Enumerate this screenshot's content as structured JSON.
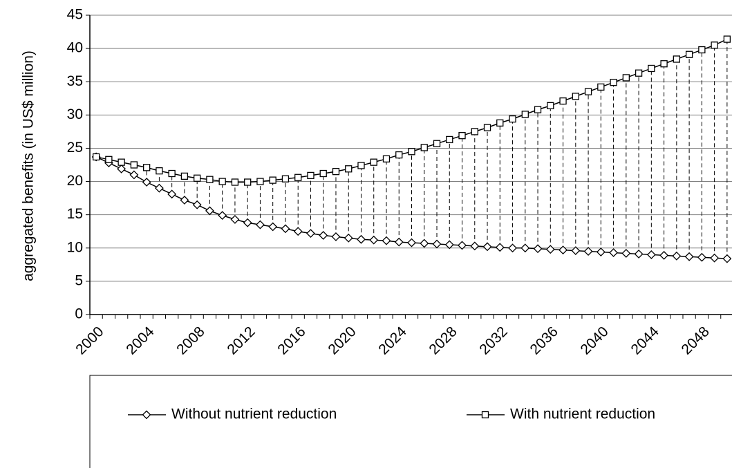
{
  "chart_data": {
    "type": "line",
    "y_label": "aggregated benefits (in US$ million)",
    "categories": [
      "2000",
      null,
      null,
      null,
      "2004",
      null,
      null,
      null,
      "2008",
      null,
      null,
      null,
      "2012",
      null,
      null,
      null,
      "2016",
      null,
      null,
      null,
      "2020",
      null,
      null,
      null,
      "2024",
      null,
      null,
      null,
      "2028",
      null,
      null,
      null,
      "2032",
      null,
      null,
      null,
      "2036",
      null,
      null,
      null,
      "2040",
      null,
      null,
      null,
      "2044",
      null,
      null,
      null,
      "2048",
      null,
      null
    ],
    "series": [
      {
        "name": "Without nutrient reduction",
        "color": "#000000",
        "marker": "diamond",
        "values": [
          23.7,
          22.8,
          21.9,
          21.0,
          19.9,
          19.0,
          18.1,
          17.2,
          16.5,
          15.6,
          14.9,
          14.3,
          13.8,
          13.5,
          13.2,
          12.9,
          12.5,
          12.2,
          11.9,
          11.7,
          11.5,
          11.3,
          11.2,
          11.1,
          10.9,
          10.8,
          10.7,
          10.6,
          10.5,
          10.4,
          10.3,
          10.2,
          10.1,
          10.0,
          10.0,
          9.9,
          9.8,
          9.7,
          9.6,
          9.5,
          9.4,
          9.3,
          9.2,
          9.1,
          9.0,
          8.9,
          8.8,
          8.7,
          8.6,
          8.5,
          8.4
        ]
      },
      {
        "name": "With nutrient reduction",
        "color": "#000000",
        "marker": "square",
        "values": [
          23.7,
          23.3,
          22.9,
          22.5,
          22.1,
          21.6,
          21.2,
          20.8,
          20.5,
          20.3,
          20.0,
          19.9,
          19.9,
          20.0,
          20.2,
          20.4,
          20.6,
          20.9,
          21.2,
          21.5,
          21.9,
          22.4,
          22.9,
          23.4,
          24.0,
          24.5,
          25.1,
          25.7,
          26.3,
          26.9,
          27.5,
          28.1,
          28.8,
          29.4,
          30.1,
          30.8,
          31.4,
          32.1,
          32.8,
          33.5,
          34.2,
          34.9,
          35.6,
          36.3,
          37.0,
          37.7,
          38.4,
          39.1,
          39.8,
          40.5,
          41.4
        ]
      }
    ],
    "ylim": [
      0,
      45
    ],
    "yticks": [
      0,
      5,
      10,
      15,
      20,
      25,
      30,
      35,
      40,
      45
    ],
    "grid": true,
    "drop_lines": true,
    "legend": "bottom"
  }
}
